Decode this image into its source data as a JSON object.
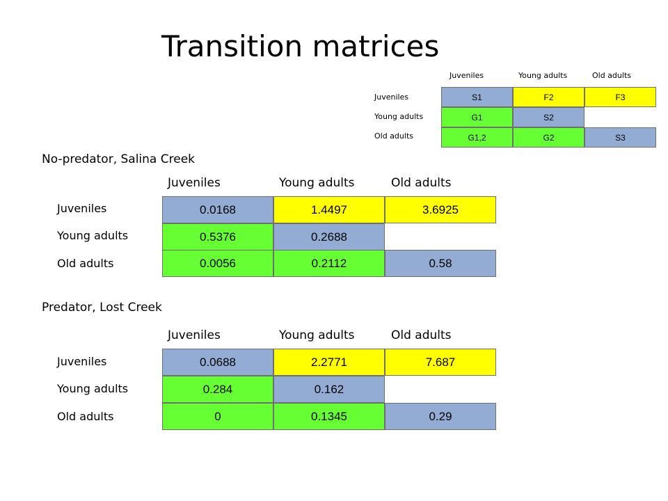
{
  "title": "Transition matrices",
  "colors": {
    "survival": "#92acd4",
    "fecundity": "#ffff00",
    "growth": "#66ff33"
  },
  "legend_matrix": {
    "column_headers": [
      "Juveniles",
      "Young adults",
      "Old adults"
    ],
    "row_headers": [
      "Juveniles",
      "Young adults",
      "Old adults"
    ],
    "rows": [
      [
        "S1",
        "F2",
        "F3"
      ],
      [
        "G1",
        "S2",
        ""
      ],
      [
        "G1,2",
        "G2",
        "S3"
      ]
    ]
  },
  "no_predator": {
    "title": "No-predator, Salina Creek",
    "column_headers": [
      "Juveniles",
      "Young adults",
      "Old adults"
    ],
    "row_headers": [
      "Juveniles",
      "Young adults",
      "Old adults"
    ],
    "rows": [
      [
        "0.0168",
        "1.4497",
        "3.6925"
      ],
      [
        "0.5376",
        "0.2688",
        ""
      ],
      [
        "0.0056",
        "0.2112",
        "0.58"
      ]
    ]
  },
  "predator": {
    "title": "Predator, Lost Creek",
    "column_headers": [
      "Juveniles",
      "Young adults",
      "Old adults"
    ],
    "row_headers": [
      "Juveniles",
      "Young adults",
      "Old adults"
    ],
    "rows": [
      [
        "0.0688",
        "2.2771",
        "7.687"
      ],
      [
        "0.284",
        "0.162",
        ""
      ],
      [
        "0",
        "0.1345",
        "0.29"
      ]
    ]
  }
}
